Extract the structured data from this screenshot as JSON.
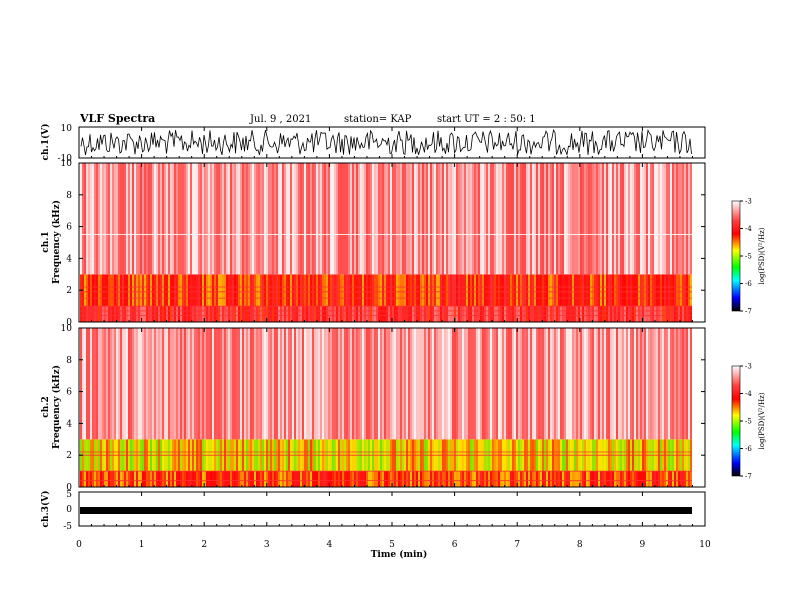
{
  "header": {
    "title": "VLF Spectra",
    "date": "Jul. 9 , 2021",
    "station": "station= KAP",
    "start": "start UT = 2 : 50: 1"
  },
  "colors": {
    "spectrogram_palette": [
      "#ffffff",
      "#ff0000",
      "#ffff00",
      "#00ff00",
      "#00ffff",
      "#0000ff",
      "#000000"
    ],
    "waveform": "#000000"
  },
  "chart_data": [
    {
      "type": "line",
      "panel": "ch1-waveform",
      "ylabel": "ch.1(V)",
      "ylim": [
        -10,
        10
      ],
      "yticks": [
        "10",
        "-10"
      ],
      "xlim": [
        0,
        10
      ],
      "series": [
        {
          "note": "dense noise waveform fluctuating between about -9 and 9 V over 0-9.8 min"
        }
      ]
    },
    {
      "type": "heatmap",
      "panel": "ch1-spectrogram",
      "ylabel": "ch.1\nFrequency (kHz)",
      "ylim": [
        0,
        10
      ],
      "yticks": [
        "0",
        "2",
        "4",
        "6",
        "8",
        "10"
      ],
      "xlim": [
        0,
        10
      ],
      "colorbar": {
        "label": "log(PSD)(V²/Hz)",
        "range": [
          -7,
          -3
        ],
        "ticks": [
          "-3",
          "-4",
          "-5",
          "-6",
          "-7"
        ]
      },
      "bands": [
        {
          "from_khz": 0,
          "to_khz": 1,
          "level": -3.8
        },
        {
          "from_khz": 1,
          "to_khz": 3,
          "level": -4.1
        },
        {
          "from_khz": 3,
          "to_khz": 10,
          "level": -3.4
        }
      ],
      "horizontal_lines_khz": [
        0.4,
        0.7,
        1.0,
        1.5,
        1.9,
        2.2,
        5.5
      ]
    },
    {
      "type": "heatmap",
      "panel": "ch2-spectrogram",
      "ylabel": "ch.2\nFrequency (kHz)",
      "ylim": [
        0,
        10
      ],
      "yticks": [
        "0",
        "2",
        "4",
        "6",
        "8",
        "10"
      ],
      "xlim": [
        0,
        10
      ],
      "colorbar": {
        "label": "log(PSD)(V²/Hz)",
        "range": [
          -7,
          -3
        ],
        "ticks": [
          "-3",
          "-4",
          "-5",
          "-6",
          "-7"
        ]
      },
      "bands": [
        {
          "from_khz": 0,
          "to_khz": 1,
          "level": -4.2
        },
        {
          "from_khz": 1,
          "to_khz": 3,
          "level": -4.6
        },
        {
          "from_khz": 3,
          "to_khz": 10,
          "level": -3.4
        }
      ],
      "horizontal_lines_khz": [
        0.4,
        1.0,
        2.0,
        2.2
      ]
    },
    {
      "type": "line",
      "panel": "ch3-waveform",
      "ylabel": "ch.3(V)",
      "ylim": [
        -5,
        5
      ],
      "yticks": [
        "5",
        "0",
        "-5"
      ],
      "xlim": [
        0,
        10
      ],
      "series": [
        {
          "note": "thick trace near -1 V over 0-9.8 min"
        }
      ]
    }
  ],
  "xaxis": {
    "label": "Time (min)",
    "ticks": [
      "0",
      "1",
      "2",
      "3",
      "4",
      "5",
      "6",
      "7",
      "8",
      "9",
      "10"
    ]
  }
}
